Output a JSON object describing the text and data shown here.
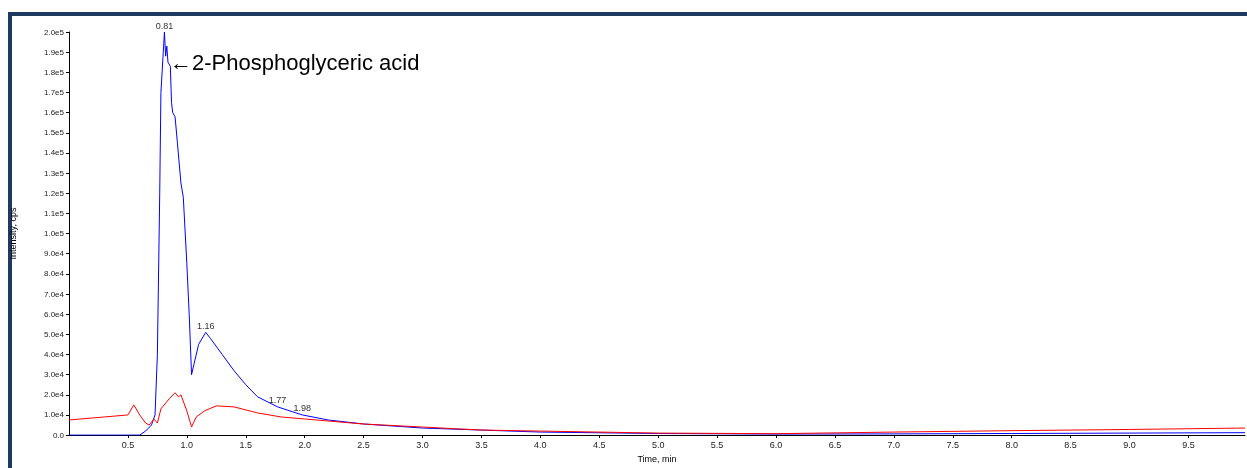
{
  "chart_data": {
    "type": "line",
    "xlabel": "Time, min",
    "ylabel": "Intensity, cps",
    "xlim": [
      0,
      9.98
    ],
    "ylim": [
      0,
      200000
    ],
    "xticks": [
      {
        "value": 0.5,
        "label": "0.5"
      },
      {
        "value": 1,
        "label": "1.0"
      },
      {
        "value": 1.5,
        "label": "1.5"
      },
      {
        "value": 2,
        "label": "2.0"
      },
      {
        "value": 2.5,
        "label": "2.5"
      },
      {
        "value": 3,
        "label": "3.0"
      },
      {
        "value": 3.5,
        "label": "3.5"
      },
      {
        "value": 4,
        "label": "4.0"
      },
      {
        "value": 4.5,
        "label": "4.5"
      },
      {
        "value": 5,
        "label": "5.0"
      },
      {
        "value": 5.5,
        "label": "5.5"
      },
      {
        "value": 6,
        "label": "6.0"
      },
      {
        "value": 6.5,
        "label": "6.5"
      },
      {
        "value": 7,
        "label": "7.0"
      },
      {
        "value": 7.5,
        "label": "7.5"
      },
      {
        "value": 8,
        "label": "8.0"
      },
      {
        "value": 8.5,
        "label": "8.5"
      },
      {
        "value": 9,
        "label": "9.0"
      },
      {
        "value": 9.5,
        "label": "9.5"
      }
    ],
    "yticks": [
      {
        "value": 0,
        "label": "0.0"
      },
      {
        "value": 10000,
        "label": "1.0e4"
      },
      {
        "value": 20000,
        "label": "2.0e4"
      },
      {
        "value": 30000,
        "label": "3.0e4"
      },
      {
        "value": 40000,
        "label": "4.0e4"
      },
      {
        "value": 50000,
        "label": "5.0e4"
      },
      {
        "value": 60000,
        "label": "6.0e4"
      },
      {
        "value": 70000,
        "label": "7.0e4"
      },
      {
        "value": 80000,
        "label": "8.0e4"
      },
      {
        "value": 90000,
        "label": "9.0e4"
      },
      {
        "value": 100000,
        "label": "1.0e5"
      },
      {
        "value": 110000,
        "label": "1.1e5"
      },
      {
        "value": 120000,
        "label": "1.2e5"
      },
      {
        "value": 130000,
        "label": "1.3e5"
      },
      {
        "value": 140000,
        "label": "1.4e5"
      },
      {
        "value": 150000,
        "label": "1.5e5"
      },
      {
        "value": 160000,
        "label": "1.6e5"
      },
      {
        "value": 170000,
        "label": "1.7e5"
      },
      {
        "value": 180000,
        "label": "1.8e5"
      },
      {
        "value": 190000,
        "label": "1.9e5"
      },
      {
        "value": 200000,
        "label": "2.0e5"
      }
    ],
    "grid": false,
    "marker": "none",
    "line_style": "solid",
    "series": [
      {
        "color": "#0000ff",
        "x": [
          0,
          0.5,
          0.6,
          0.65,
          0.7,
          0.73,
          0.75,
          0.77,
          0.78,
          0.8,
          0.81,
          0.82,
          0.83,
          0.84,
          0.86,
          0.87,
          0.88,
          0.9,
          0.92,
          0.95,
          0.97,
          1.0,
          1.02,
          1.04,
          1.06,
          1.1,
          1.16,
          1.2,
          1.3,
          1.4,
          1.5,
          1.6,
          1.77,
          1.98,
          2.2,
          2.5,
          3.0,
          3.5,
          4.0,
          5.0,
          6.0,
          7.0,
          8.0,
          9.0,
          9.98
        ],
        "values": [
          0,
          0,
          0,
          2000,
          5000,
          10000,
          40000,
          120000,
          170000,
          190000,
          200000,
          188000,
          193000,
          185000,
          183000,
          165000,
          160000,
          158000,
          145000,
          125000,
          118000,
          85000,
          60000,
          30000,
          35000,
          45000,
          51000,
          48000,
          40000,
          32000,
          25000,
          19000,
          14000,
          10000,
          7500,
          5500,
          3500,
          2500,
          1500,
          800,
          500,
          600,
          800,
          1000,
          1200
        ]
      },
      {
        "color": "#ff0000",
        "x": [
          0,
          0.3,
          0.5,
          0.55,
          0.6,
          0.65,
          0.68,
          0.72,
          0.75,
          0.78,
          0.85,
          0.9,
          0.93,
          0.95,
          1.0,
          1.04,
          1.08,
          1.15,
          1.25,
          1.4,
          1.6,
          1.8,
          2.0,
          2.5,
          3.0,
          3.5,
          4.0,
          5.0,
          6.0,
          7.0,
          8.0,
          9.0,
          9.98
        ],
        "values": [
          7500,
          9000,
          10000,
          15000,
          10000,
          6000,
          5000,
          8000,
          6000,
          13000,
          18000,
          21000,
          19000,
          20000,
          12000,
          4000,
          9000,
          12000,
          14500,
          14000,
          11000,
          9000,
          8000,
          5500,
          4000,
          2500,
          2000,
          1000,
          700,
          1500,
          2200,
          2800,
          3500
        ]
      }
    ],
    "annotations": [
      {
        "text": "0.81",
        "x": 0.81,
        "y": 200000
      },
      {
        "text": "1.16",
        "x": 1.16,
        "y": 51000
      },
      {
        "text": "1.77",
        "x": 1.77,
        "y": 14000
      },
      {
        "text": "1.98",
        "x": 1.98,
        "y": 10000
      },
      {
        "text": "←2-Phosphoglyceric acid",
        "x": 0.84,
        "y": 185000
      }
    ]
  }
}
